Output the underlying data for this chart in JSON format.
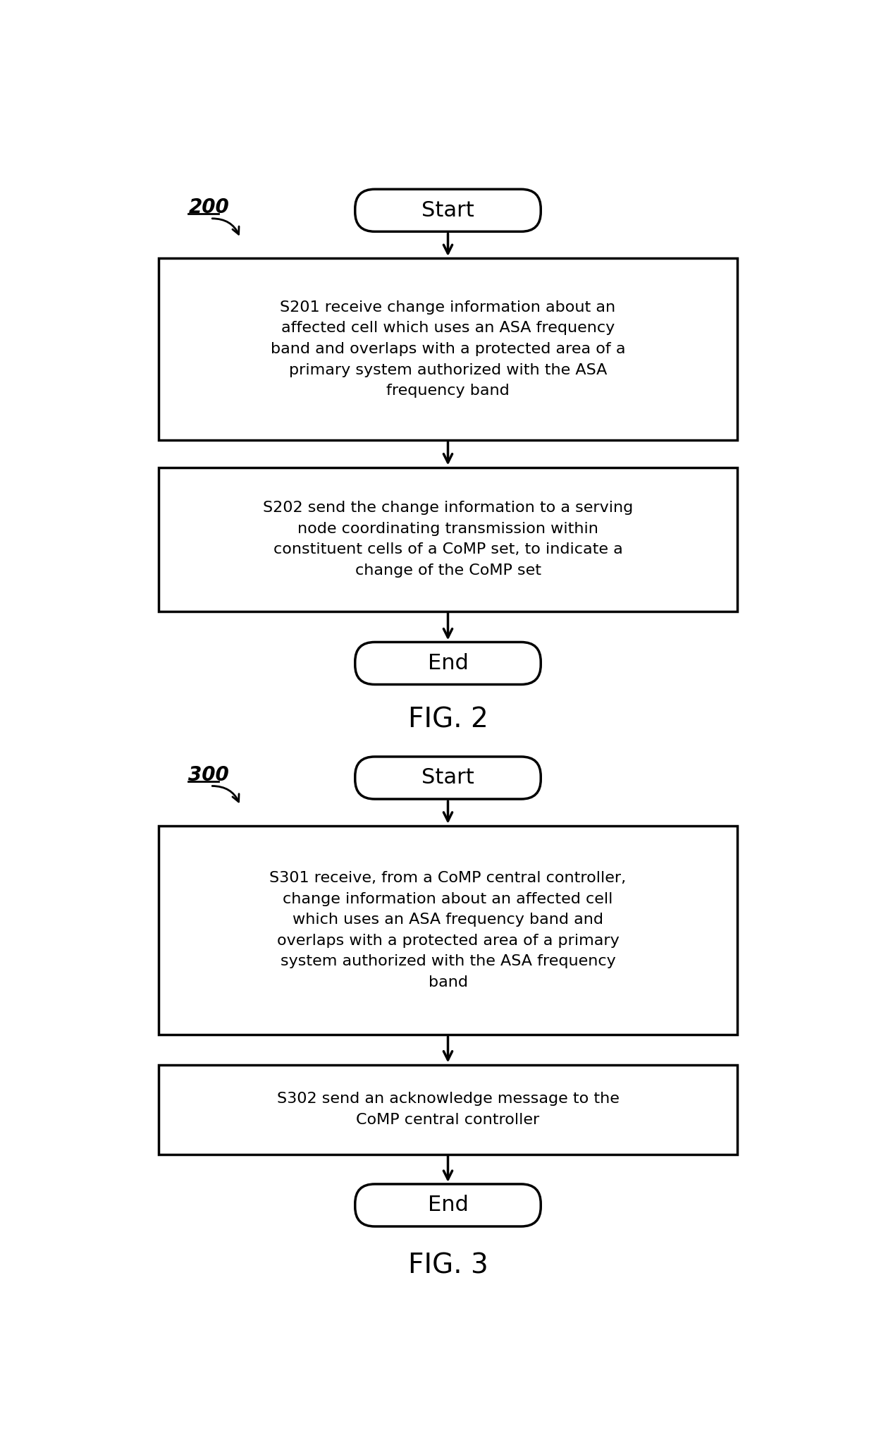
{
  "bg_color": "#ffffff",
  "fig_label_200": "200",
  "fig_label_300": "300",
  "fig2_label": "FIG. 2",
  "fig3_label": "FIG. 3",
  "start_text": "Start",
  "end_text": "End",
  "s201_text": "S201 receive change information about an\naffected cell which uses an ASA frequency\nband and overlaps with a protected area of a\nprimary system authorized with the ASA\nfrequency band",
  "s202_text": "S202 send the change information to a serving\nnode coordinating transmission within\nconstituent cells of a CoMP set, to indicate a\nchange of the CoMP set",
  "s301_text": "S301 receive, from a CoMP central controller,\nchange information about an affected cell\nwhich uses an ASA frequency band and\noverlaps with a protected area of a primary\nsystem authorized with the ASA frequency\nband",
  "s302_text": "S302 send an acknowledge message to the\nCoMP central controller",
  "text_color": "#000000",
  "box_edge_color": "#000000",
  "arrow_color": "#000000"
}
